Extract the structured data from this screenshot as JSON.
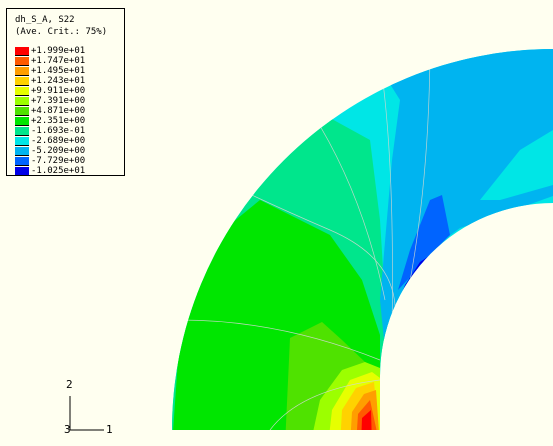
{
  "legend": {
    "title": "dh_S_A, S22",
    "subtitle": "(Ave. Crit.: 75%)",
    "entries": [
      {
        "value": "+1.999e+01",
        "color": "#ff0000"
      },
      {
        "value": "+1.747e+01",
        "color": "#ff5a00"
      },
      {
        "value": "+1.495e+01",
        "color": "#ff9e00"
      },
      {
        "value": "+1.243e+01",
        "color": "#ffd200"
      },
      {
        "value": "+9.911e+00",
        "color": "#e6ff00"
      },
      {
        "value": "+7.391e+00",
        "color": "#9cff00"
      },
      {
        "value": "+4.871e+00",
        "color": "#4fe200"
      },
      {
        "value": "+2.351e+00",
        "color": "#00e600"
      },
      {
        "value": "-1.693e-01",
        "color": "#00e68c"
      },
      {
        "value": "-2.689e+00",
        "color": "#00e6e6"
      },
      {
        "value": "-5.209e+00",
        "color": "#00b4f0"
      },
      {
        "value": "-7.729e+00",
        "color": "#0064ff"
      },
      {
        "value": "-1.025e+01",
        "color": "#0000e6"
      }
    ]
  },
  "triad": {
    "axis_x": "1",
    "axis_y": "2",
    "axis_z": "3"
  },
  "colors": {
    "background": "#fffff0"
  }
}
